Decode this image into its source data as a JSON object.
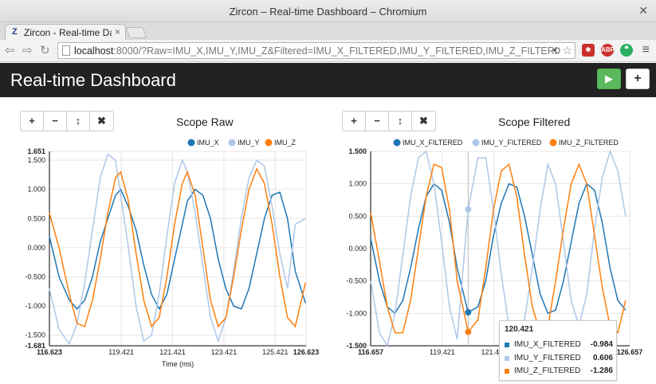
{
  "browser": {
    "window_title": "Zircon – Real-time Dashboard – Chromium",
    "tab_label": "Zircon - Real-time Das",
    "url_host": "localhost",
    "url_rest": ":8000/?Raw=IMU_X,IMU_Y,IMU_Z&Filtered=IMU_X_FILTERED,IMU_Y_FILTERED,IMU_Z_FILTERED",
    "extensions": [
      {
        "name": "extension-badge-icon",
        "text": "6",
        "color": "#c9302c"
      },
      {
        "name": "adblock-icon",
        "text": "ABP",
        "color": "#c9302c"
      },
      {
        "name": "quote-extension-icon",
        "text": "❝",
        "color": "#27ae60"
      }
    ]
  },
  "header": {
    "title": "Real-time Dashboard",
    "play_icon": "play-icon",
    "add_icon": "plus-icon"
  },
  "panel_buttons": [
    {
      "name": "zoom-in-button",
      "glyph": "+"
    },
    {
      "name": "zoom-out-button",
      "glyph": "−"
    },
    {
      "name": "autoscale-button",
      "glyph": "↕"
    },
    {
      "name": "close-panel-button",
      "glyph": "✖"
    }
  ],
  "colors": {
    "series_x": "#1f77b4",
    "series_y": "#aec7e8",
    "series_z": "#ff7f0e"
  },
  "panels": [
    {
      "title": "Scope Raw",
      "xlabel": "Time (ms)"
    },
    {
      "title": "Scope Filtered",
      "xlabel": ""
    }
  ],
  "tooltip": {
    "title": "120.421",
    "rows": [
      {
        "name": "IMU_X_FILTERED",
        "value": "-0.984"
      },
      {
        "name": "IMU_Y_FILTERED",
        "value": "0.606"
      },
      {
        "name": "IMU_Z_FILTERED",
        "value": "-1.286"
      }
    ]
  },
  "chart_data": [
    {
      "type": "line",
      "title": "Scope Raw",
      "xlabel": "Time (ms)",
      "ylabel": "",
      "xlim": [
        116.623,
        126.623
      ],
      "ylim": [
        -1.681,
        1.651
      ],
      "x_ticks": [
        "116.623",
        "119.421",
        "121.421",
        "123.421",
        "125.421",
        "126.623"
      ],
      "x_tick_values": [
        116.623,
        119.421,
        121.421,
        123.421,
        125.421,
        126.623
      ],
      "y_ticks": [
        "1.651",
        "1.500",
        "1.000",
        "0.500",
        "0.000",
        "-0.500",
        "-1.000",
        "-1.500",
        "-1.681"
      ],
      "y_tick_values": [
        1.651,
        1.5,
        1.0,
        0.5,
        0.0,
        -0.5,
        -1.0,
        -1.5,
        -1.681
      ],
      "grid": true,
      "legend": "top-right",
      "series": [
        {
          "name": "IMU_X",
          "x": [
            116.62,
            117.0,
            117.4,
            117.7,
            118.0,
            118.3,
            118.6,
            118.9,
            119.2,
            119.4,
            119.7,
            120.0,
            120.3,
            120.6,
            120.9,
            121.2,
            121.5,
            121.8,
            122.0,
            122.3,
            122.6,
            122.9,
            123.2,
            123.5,
            123.8,
            124.1,
            124.4,
            124.7,
            125.0,
            125.3,
            125.6,
            125.9,
            126.2,
            126.6
          ],
          "y": [
            0.2,
            -0.5,
            -0.9,
            -1.05,
            -0.9,
            -0.5,
            0.1,
            0.5,
            0.9,
            1.0,
            0.7,
            0.3,
            -0.3,
            -0.8,
            -1.05,
            -0.8,
            -0.2,
            0.4,
            0.8,
            1.0,
            0.9,
            0.5,
            -0.2,
            -0.7,
            -1.0,
            -1.05,
            -0.7,
            -0.1,
            0.5,
            0.9,
            0.95,
            0.5,
            -0.4,
            -0.95
          ]
        },
        {
          "name": "IMU_Y",
          "x": [
            116.62,
            117.0,
            117.4,
            117.7,
            118.0,
            118.3,
            118.6,
            118.9,
            119.2,
            119.4,
            119.7,
            120.0,
            120.3,
            120.6,
            120.9,
            121.2,
            121.5,
            121.8,
            122.0,
            122.3,
            122.6,
            122.9,
            123.2,
            123.5,
            123.8,
            124.1,
            124.4,
            124.7,
            125.0,
            125.3,
            125.6,
            125.9,
            126.2,
            126.6
          ],
          "y": [
            -0.7,
            -1.4,
            -1.65,
            -1.3,
            -0.6,
            0.3,
            1.2,
            1.6,
            1.5,
            0.9,
            0.0,
            -1.0,
            -1.6,
            -1.5,
            -0.8,
            0.2,
            1.1,
            1.5,
            1.3,
            0.6,
            -0.3,
            -1.2,
            -1.6,
            -1.2,
            -0.4,
            0.5,
            1.2,
            1.5,
            1.4,
            0.7,
            -0.1,
            -0.7,
            0.4,
            0.5
          ]
        },
        {
          "name": "IMU_Z",
          "x": [
            116.62,
            117.0,
            117.4,
            117.7,
            118.0,
            118.3,
            118.6,
            118.9,
            119.2,
            119.4,
            119.7,
            120.0,
            120.3,
            120.6,
            120.9,
            121.2,
            121.5,
            121.8,
            122.0,
            122.3,
            122.6,
            122.9,
            123.2,
            123.5,
            123.8,
            124.1,
            124.4,
            124.7,
            125.0,
            125.3,
            125.6,
            125.9,
            126.2,
            126.6
          ],
          "y": [
            0.6,
            0.0,
            -0.8,
            -1.3,
            -1.35,
            -0.9,
            -0.2,
            0.6,
            1.2,
            1.3,
            0.8,
            -0.1,
            -0.9,
            -1.35,
            -1.2,
            -0.5,
            0.4,
            1.1,
            1.3,
            0.9,
            0.0,
            -0.9,
            -1.35,
            -1.2,
            -0.5,
            0.3,
            1.0,
            1.35,
            1.1,
            0.4,
            -0.5,
            -1.2,
            -1.35,
            -0.6
          ]
        }
      ]
    },
    {
      "type": "line",
      "title": "Scope Filtered",
      "xlabel": "",
      "ylabel": "",
      "xlim": [
        116.657,
        126.657
      ],
      "ylim": [
        -1.5,
        1.5
      ],
      "x_ticks": [
        "116.657",
        "119.421",
        "121.421",
        "126.657"
      ],
      "x_tick_values": [
        116.657,
        119.421,
        121.421,
        126.657
      ],
      "y_ticks": [
        "1.500",
        "1.000",
        "0.500",
        "0.000",
        "-0.500",
        "-1.000",
        "-1.500"
      ],
      "y_tick_values": [
        1.5,
        1.0,
        0.5,
        0.0,
        -0.5,
        -1.0,
        -1.5
      ],
      "grid": true,
      "legend": "top-right",
      "highlight_x": 120.421,
      "series": [
        {
          "name": "IMU_X_FILTERED",
          "x": [
            116.66,
            117.0,
            117.3,
            117.6,
            117.9,
            118.2,
            118.5,
            118.8,
            119.1,
            119.4,
            119.7,
            120.0,
            120.421,
            120.8,
            121.1,
            121.4,
            121.7,
            122.0,
            122.3,
            122.6,
            122.9,
            123.2,
            123.5,
            123.8,
            124.1,
            124.4,
            124.7,
            125.0,
            125.3,
            125.6,
            125.9,
            126.2,
            126.5
          ],
          "y": [
            0.15,
            -0.5,
            -0.9,
            -1.0,
            -0.8,
            -0.3,
            0.3,
            0.8,
            1.0,
            0.9,
            0.4,
            -0.3,
            -0.984,
            -0.9,
            -0.5,
            0.2,
            0.7,
            1.0,
            0.95,
            0.5,
            -0.1,
            -0.7,
            -1.0,
            -0.95,
            -0.5,
            0.1,
            0.7,
            1.0,
            0.9,
            0.4,
            -0.3,
            -0.8,
            -0.95
          ]
        },
        {
          "name": "IMU_Y_FILTERED",
          "x": [
            116.66,
            117.0,
            117.3,
            117.6,
            117.9,
            118.2,
            118.5,
            118.8,
            119.1,
            119.4,
            119.7,
            120.0,
            120.421,
            120.8,
            121.1,
            121.4,
            121.7,
            122.0,
            122.3,
            122.6,
            122.9,
            123.2,
            123.5,
            123.8,
            124.1,
            124.4,
            124.7,
            125.0,
            125.3,
            125.6,
            125.9,
            126.2,
            126.5
          ],
          "y": [
            -0.5,
            -1.3,
            -1.5,
            -1.0,
            -0.1,
            0.8,
            1.4,
            1.5,
            1.0,
            0.1,
            -0.9,
            -1.4,
            0.606,
            1.4,
            1.4,
            0.6,
            -0.4,
            -1.2,
            -1.5,
            -1.1,
            -0.3,
            0.6,
            1.3,
            1.0,
            0.1,
            -0.8,
            -1.2,
            -0.7,
            0.3,
            1.1,
            1.5,
            1.2,
            0.5
          ]
        },
        {
          "name": "IMU_Z_FILTERED",
          "x": [
            116.66,
            117.0,
            117.3,
            117.6,
            117.9,
            118.2,
            118.5,
            118.8,
            119.1,
            119.4,
            119.7,
            120.0,
            120.421,
            120.8,
            121.1,
            121.4,
            121.7,
            122.0,
            122.3,
            122.6,
            122.9,
            123.2,
            123.5,
            123.8,
            124.1,
            124.4,
            124.7,
            125.0,
            125.3,
            125.6,
            125.9,
            126.2,
            126.5
          ],
          "y": [
            0.55,
            -0.2,
            -0.9,
            -1.3,
            -1.3,
            -0.8,
            0.0,
            0.8,
            1.3,
            1.25,
            0.6,
            -0.5,
            -1.286,
            -1.1,
            -0.3,
            0.6,
            1.2,
            1.3,
            0.8,
            -0.1,
            -0.9,
            -1.3,
            -1.2,
            -0.5,
            0.3,
            1.0,
            1.3,
            1.0,
            0.2,
            -0.6,
            -1.2,
            -1.3,
            -0.8
          ]
        }
      ]
    }
  ]
}
